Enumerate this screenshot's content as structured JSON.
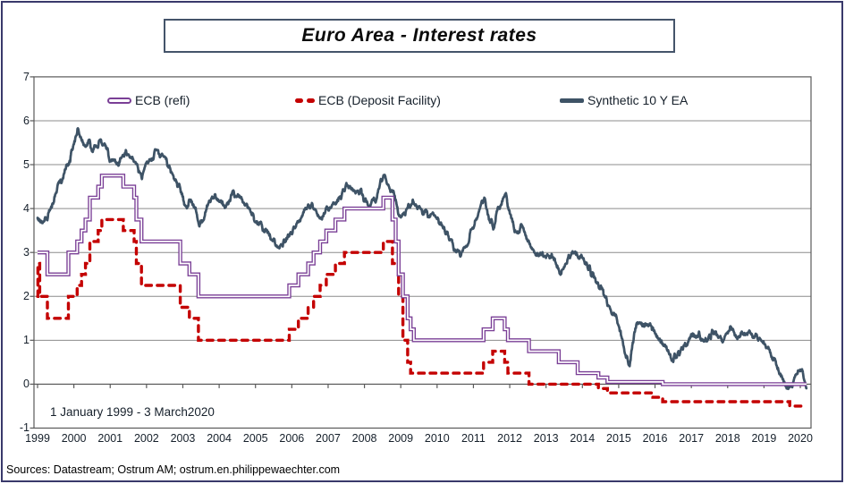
{
  "title": "Euro Area - Interest rates",
  "sources": "Sources: Datastream; Ostrum AM; ostrum.en.philippewaechter.com",
  "chart_data": {
    "type": "line",
    "title": "Euro Area - Interest rates",
    "period_label": "1 January 1999 - 3 March2020",
    "x_axis": {
      "tick_labels": [
        "1999",
        "2000",
        "2001",
        "2002",
        "2003",
        "2004",
        "2005",
        "2006",
        "2007",
        "2008",
        "2009",
        "2010",
        "2011",
        "2012",
        "2013",
        "2014",
        "2015",
        "2016",
        "2017",
        "2018",
        "2019",
        "2020"
      ],
      "tick_values": [
        1999,
        2000,
        2001,
        2002,
        2003,
        2004,
        2005,
        2006,
        2007,
        2008,
        2009,
        2010,
        2011,
        2012,
        2013,
        2014,
        2015,
        2016,
        2017,
        2018,
        2019,
        2020
      ],
      "range": [
        1998.9,
        2020.3
      ],
      "data_end": 2020.17
    },
    "y_axis": {
      "tick_labels": [
        "7",
        "6",
        "5",
        "4",
        "3",
        "2",
        "1",
        "0",
        "-1"
      ],
      "tick_values": [
        7,
        6,
        5,
        4,
        3,
        2,
        1,
        0,
        -1
      ],
      "range": [
        -1,
        7
      ],
      "grid": true
    },
    "legend": {
      "position": "top-inside"
    },
    "series": [
      {
        "name": "ECB (refi)",
        "color": "#7A3F96",
        "style": "step-double-line",
        "points": [
          [
            1999.0,
            3.0
          ],
          [
            1999.27,
            2.5
          ],
          [
            1999.85,
            3.0
          ],
          [
            2000.09,
            3.25
          ],
          [
            2000.21,
            3.5
          ],
          [
            2000.32,
            3.75
          ],
          [
            2000.44,
            4.25
          ],
          [
            2000.67,
            4.5
          ],
          [
            2000.77,
            4.75
          ],
          [
            2001.36,
            4.5
          ],
          [
            2001.66,
            4.25
          ],
          [
            2001.72,
            3.75
          ],
          [
            2001.86,
            3.25
          ],
          [
            2002.93,
            2.75
          ],
          [
            2003.18,
            2.5
          ],
          [
            2003.43,
            2.0
          ],
          [
            2005.93,
            2.25
          ],
          [
            2006.18,
            2.5
          ],
          [
            2006.45,
            2.75
          ],
          [
            2006.6,
            3.0
          ],
          [
            2006.78,
            3.25
          ],
          [
            2006.95,
            3.5
          ],
          [
            2007.2,
            3.75
          ],
          [
            2007.45,
            4.0
          ],
          [
            2008.52,
            4.25
          ],
          [
            2008.77,
            3.75
          ],
          [
            2008.86,
            3.25
          ],
          [
            2008.94,
            2.5
          ],
          [
            2009.06,
            2.0
          ],
          [
            2009.19,
            1.5
          ],
          [
            2009.27,
            1.25
          ],
          [
            2009.36,
            1.0
          ],
          [
            2011.28,
            1.25
          ],
          [
            2011.53,
            1.5
          ],
          [
            2011.86,
            1.25
          ],
          [
            2011.95,
            1.0
          ],
          [
            2012.53,
            0.75
          ],
          [
            2013.35,
            0.5
          ],
          [
            2013.87,
            0.25
          ],
          [
            2014.44,
            0.15
          ],
          [
            2014.69,
            0.05
          ],
          [
            2016.21,
            0.0
          ]
        ]
      },
      {
        "name": "ECB (Deposit Facility)",
        "color": "#C40000",
        "style": "step-dashed",
        "points": [
          [
            1999.0,
            2.0
          ],
          [
            1999.01,
            2.75
          ],
          [
            1999.06,
            2.0
          ],
          [
            1999.27,
            1.5
          ],
          [
            1999.85,
            2.0
          ],
          [
            2000.09,
            2.25
          ],
          [
            2000.21,
            2.5
          ],
          [
            2000.32,
            2.75
          ],
          [
            2000.44,
            3.25
          ],
          [
            2000.67,
            3.5
          ],
          [
            2000.77,
            3.75
          ],
          [
            2001.36,
            3.5
          ],
          [
            2001.66,
            3.25
          ],
          [
            2001.72,
            2.75
          ],
          [
            2001.86,
            2.25
          ],
          [
            2002.93,
            1.75
          ],
          [
            2003.18,
            1.5
          ],
          [
            2003.43,
            1.0
          ],
          [
            2005.93,
            1.25
          ],
          [
            2006.18,
            1.5
          ],
          [
            2006.45,
            1.75
          ],
          [
            2006.6,
            2.0
          ],
          [
            2006.78,
            2.25
          ],
          [
            2006.95,
            2.5
          ],
          [
            2007.2,
            2.75
          ],
          [
            2007.45,
            3.0
          ],
          [
            2008.52,
            3.25
          ],
          [
            2008.77,
            2.75
          ],
          [
            2008.94,
            2.0
          ],
          [
            2009.06,
            1.0
          ],
          [
            2009.19,
            0.5
          ],
          [
            2009.27,
            0.25
          ],
          [
            2011.28,
            0.5
          ],
          [
            2011.53,
            0.75
          ],
          [
            2011.86,
            0.5
          ],
          [
            2011.95,
            0.25
          ],
          [
            2012.53,
            0.0
          ],
          [
            2014.44,
            -0.1
          ],
          [
            2014.69,
            -0.2
          ],
          [
            2015.94,
            -0.3
          ],
          [
            2016.21,
            -0.4
          ],
          [
            2019.71,
            -0.5
          ]
        ]
      },
      {
        "name": "Synthetic 10 Y EA",
        "color": "#3E5366",
        "style": "noisy-line",
        "points": [
          [
            1999.0,
            3.85
          ],
          [
            1999.08,
            3.75
          ],
          [
            1999.17,
            3.7
          ],
          [
            1999.3,
            3.85
          ],
          [
            1999.45,
            4.15
          ],
          [
            1999.55,
            4.45
          ],
          [
            1999.7,
            4.75
          ],
          [
            1999.8,
            5.0
          ],
          [
            1999.9,
            5.15
          ],
          [
            2000.0,
            5.5
          ],
          [
            2000.1,
            5.75
          ],
          [
            2000.18,
            5.6
          ],
          [
            2000.3,
            5.45
          ],
          [
            2000.4,
            5.55
          ],
          [
            2000.5,
            5.35
          ],
          [
            2000.6,
            5.45
          ],
          [
            2000.7,
            5.5
          ],
          [
            2000.8,
            5.45
          ],
          [
            2000.9,
            5.35
          ],
          [
            2001.0,
            5.1
          ],
          [
            2001.1,
            5.05
          ],
          [
            2001.2,
            4.95
          ],
          [
            2001.35,
            5.15
          ],
          [
            2001.45,
            5.3
          ],
          [
            2001.55,
            5.2
          ],
          [
            2001.7,
            5.0
          ],
          [
            2001.8,
            4.8
          ],
          [
            2001.87,
            4.7
          ],
          [
            2002.0,
            5.05
          ],
          [
            2002.15,
            5.2
          ],
          [
            2002.3,
            5.3
          ],
          [
            2002.45,
            5.2
          ],
          [
            2002.55,
            5.05
          ],
          [
            2002.7,
            4.75
          ],
          [
            2002.8,
            4.6
          ],
          [
            2002.9,
            4.5
          ],
          [
            2003.0,
            4.25
          ],
          [
            2003.1,
            4.05
          ],
          [
            2003.2,
            4.15
          ],
          [
            2003.35,
            3.95
          ],
          [
            2003.45,
            3.55
          ],
          [
            2003.6,
            3.85
          ],
          [
            2003.75,
            4.2
          ],
          [
            2003.9,
            4.3
          ],
          [
            2004.0,
            4.2
          ],
          [
            2004.15,
            4.1
          ],
          [
            2004.3,
            4.25
          ],
          [
            2004.45,
            4.35
          ],
          [
            2004.55,
            4.3
          ],
          [
            2004.7,
            4.1
          ],
          [
            2004.85,
            3.95
          ],
          [
            2005.0,
            3.7
          ],
          [
            2005.15,
            3.65
          ],
          [
            2005.25,
            3.5
          ],
          [
            2005.4,
            3.35
          ],
          [
            2005.55,
            3.2
          ],
          [
            2005.65,
            3.1
          ],
          [
            2005.8,
            3.2
          ],
          [
            2005.9,
            3.4
          ],
          [
            2006.0,
            3.45
          ],
          [
            2006.15,
            3.6
          ],
          [
            2006.3,
            3.85
          ],
          [
            2006.45,
            4.05
          ],
          [
            2006.55,
            4.1
          ],
          [
            2006.7,
            3.85
          ],
          [
            2006.85,
            3.8
          ],
          [
            2007.0,
            4.0
          ],
          [
            2007.1,
            4.1
          ],
          [
            2007.2,
            4.05
          ],
          [
            2007.35,
            4.25
          ],
          [
            2007.5,
            4.55
          ],
          [
            2007.6,
            4.45
          ],
          [
            2007.75,
            4.35
          ],
          [
            2007.9,
            4.4
          ],
          [
            2008.0,
            4.2
          ],
          [
            2008.15,
            4.05
          ],
          [
            2008.3,
            4.2
          ],
          [
            2008.45,
            4.65
          ],
          [
            2008.55,
            4.7
          ],
          [
            2008.65,
            4.5
          ],
          [
            2008.8,
            4.35
          ],
          [
            2008.9,
            4.0
          ],
          [
            2009.0,
            3.7
          ],
          [
            2009.15,
            4.0
          ],
          [
            2009.3,
            4.15
          ],
          [
            2009.45,
            4.05
          ],
          [
            2009.6,
            3.95
          ],
          [
            2009.75,
            3.9
          ],
          [
            2009.9,
            3.85
          ],
          [
            2010.0,
            3.8
          ],
          [
            2010.15,
            3.6
          ],
          [
            2010.3,
            3.4
          ],
          [
            2010.45,
            3.15
          ],
          [
            2010.6,
            2.95
          ],
          [
            2010.7,
            3.0
          ],
          [
            2010.85,
            3.25
          ],
          [
            2011.0,
            3.6
          ],
          [
            2011.15,
            3.95
          ],
          [
            2011.3,
            4.25
          ],
          [
            2011.45,
            3.75
          ],
          [
            2011.55,
            3.6
          ],
          [
            2011.65,
            3.9
          ],
          [
            2011.8,
            4.15
          ],
          [
            2011.88,
            4.4
          ],
          [
            2012.0,
            3.9
          ],
          [
            2012.1,
            3.6
          ],
          [
            2012.2,
            3.45
          ],
          [
            2012.35,
            3.65
          ],
          [
            2012.5,
            3.25
          ],
          [
            2012.6,
            3.05
          ],
          [
            2012.75,
            2.9
          ],
          [
            2012.9,
            2.95
          ],
          [
            2013.0,
            2.9
          ],
          [
            2013.15,
            2.95
          ],
          [
            2013.3,
            2.7
          ],
          [
            2013.4,
            2.5
          ],
          [
            2013.55,
            2.75
          ],
          [
            2013.7,
            3.0
          ],
          [
            2013.85,
            2.95
          ],
          [
            2014.0,
            2.85
          ],
          [
            2014.2,
            2.6
          ],
          [
            2014.4,
            2.35
          ],
          [
            2014.6,
            2.0
          ],
          [
            2014.8,
            1.7
          ],
          [
            2015.0,
            1.4
          ],
          [
            2015.1,
            1.0
          ],
          [
            2015.2,
            0.6
          ],
          [
            2015.3,
            0.4
          ],
          [
            2015.45,
            1.3
          ],
          [
            2015.55,
            1.45
          ],
          [
            2015.7,
            1.3
          ],
          [
            2015.85,
            1.35
          ],
          [
            2016.0,
            1.15
          ],
          [
            2016.15,
            0.95
          ],
          [
            2016.3,
            0.8
          ],
          [
            2016.5,
            0.55
          ],
          [
            2016.65,
            0.7
          ],
          [
            2016.8,
            0.85
          ],
          [
            2016.95,
            1.05
          ],
          [
            2017.1,
            1.15
          ],
          [
            2017.25,
            1.1
          ],
          [
            2017.4,
            1.0
          ],
          [
            2017.55,
            1.15
          ],
          [
            2017.7,
            1.1
          ],
          [
            2017.85,
            1.0
          ],
          [
            2018.0,
            1.15
          ],
          [
            2018.1,
            1.3
          ],
          [
            2018.25,
            1.1
          ],
          [
            2018.4,
            1.15
          ],
          [
            2018.55,
            1.2
          ],
          [
            2018.7,
            1.05
          ],
          [
            2018.85,
            1.1
          ],
          [
            2019.0,
            0.95
          ],
          [
            2019.15,
            0.8
          ],
          [
            2019.3,
            0.55
          ],
          [
            2019.45,
            0.25
          ],
          [
            2019.55,
            0.0
          ],
          [
            2019.65,
            -0.15
          ],
          [
            2019.75,
            -0.1
          ],
          [
            2019.85,
            0.1
          ],
          [
            2019.95,
            0.25
          ],
          [
            2020.05,
            0.3
          ],
          [
            2020.1,
            0.15
          ],
          [
            2020.17,
            -0.1
          ]
        ]
      }
    ],
    "colors": {
      "grid": "#8C8C8C",
      "frame": "#595959",
      "text": "#16202b"
    }
  }
}
